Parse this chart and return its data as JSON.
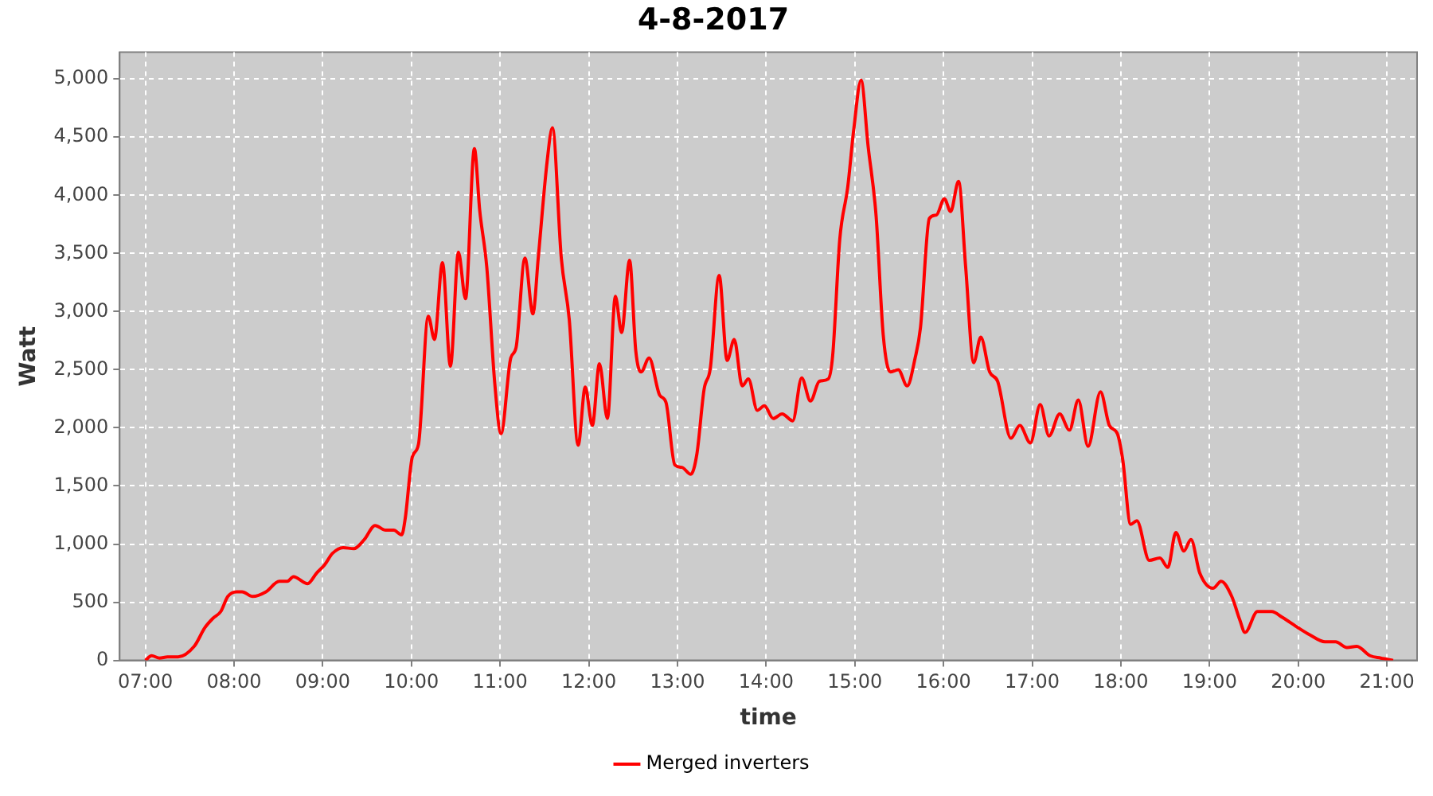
{
  "chart_data": {
    "type": "line",
    "title": "4-8-2017",
    "xlabel": "time",
    "ylabel": "Watt",
    "x": [
      7.0,
      7.07,
      7.16,
      7.25,
      7.37,
      7.55,
      7.67,
      7.76,
      7.85,
      7.93,
      8.03,
      8.09,
      8.21,
      8.36,
      8.51,
      8.6,
      8.67,
      8.83,
      8.93,
      9.02,
      9.11,
      9.23,
      9.35,
      9.47,
      9.59,
      9.71,
      9.8,
      9.89,
      9.93,
      10.01,
      10.08,
      10.19,
      10.26,
      10.35,
      10.44,
      10.53,
      10.61,
      10.71,
      10.77,
      10.85,
      10.94,
      11.01,
      11.12,
      11.18,
      11.28,
      11.37,
      11.43,
      11.53,
      11.59,
      11.69,
      11.78,
      11.88,
      11.96,
      12.04,
      12.12,
      12.21,
      12.3,
      12.37,
      12.46,
      12.53,
      12.59,
      12.68,
      12.8,
      12.87,
      12.97,
      13.05,
      13.15,
      13.22,
      13.3,
      13.37,
      13.47,
      13.56,
      13.64,
      13.73,
      13.8,
      13.9,
      13.98,
      14.08,
      14.18,
      14.3,
      14.4,
      14.5,
      14.6,
      14.7,
      14.75,
      14.83,
      14.92,
      14.99,
      15.07,
      15.15,
      15.24,
      15.32,
      15.4,
      15.49,
      15.59,
      15.68,
      15.74,
      15.84,
      15.92,
      16.01,
      16.08,
      16.17,
      16.25,
      16.34,
      16.42,
      16.52,
      16.61,
      16.76,
      16.86,
      16.98,
      17.09,
      17.19,
      17.31,
      17.42,
      17.52,
      17.63,
      17.77,
      17.87,
      17.96,
      18.02,
      18.11,
      18.18,
      18.32,
      18.44,
      18.53,
      18.62,
      18.71,
      18.79,
      18.89,
      19.04,
      19.13,
      19.25,
      19.34,
      19.4,
      19.54,
      19.7,
      19.82,
      20.0,
      20.13,
      20.3,
      20.42,
      20.55,
      20.66,
      20.81,
      20.93,
      21.07
    ],
    "series": [
      {
        "name": "Merged inverters",
        "color": "#ff0000",
        "values": [
          0,
          40,
          20,
          30,
          30,
          120,
          280,
          360,
          420,
          550,
          590,
          590,
          550,
          590,
          680,
          680,
          720,
          660,
          750,
          820,
          920,
          970,
          960,
          1040,
          1160,
          1120,
          1120,
          1080,
          1220,
          1750,
          1860,
          2960,
          2760,
          3420,
          2530,
          3510,
          3110,
          4400,
          3870,
          3380,
          2380,
          1950,
          2600,
          2690,
          3460,
          2980,
          3460,
          4290,
          4580,
          3460,
          2930,
          1850,
          2350,
          2020,
          2550,
          2080,
          3130,
          2820,
          3440,
          2660,
          2480,
          2600,
          2280,
          2220,
          1680,
          1660,
          1600,
          1780,
          2330,
          2510,
          3310,
          2580,
          2760,
          2360,
          2420,
          2150,
          2190,
          2080,
          2120,
          2060,
          2430,
          2230,
          2400,
          2420,
          2620,
          3620,
          4070,
          4580,
          4990,
          4420,
          3820,
          2800,
          2480,
          2500,
          2360,
          2600,
          2860,
          3800,
          3830,
          3970,
          3860,
          4120,
          3380,
          2560,
          2780,
          2480,
          2400,
          1910,
          2020,
          1870,
          2200,
          1930,
          2120,
          1980,
          2240,
          1840,
          2310,
          2020,
          1950,
          1730,
          1170,
          1200,
          860,
          880,
          800,
          1100,
          940,
          1040,
          750,
          620,
          680,
          550,
          350,
          240,
          420,
          420,
          370,
          280,
          220,
          160,
          160,
          110,
          120,
          40,
          20,
          0
        ]
      }
    ],
    "xlim": [
      6.71,
      21.34
    ],
    "xticks": [
      {
        "value": 7,
        "label": "07:00"
      },
      {
        "value": 8,
        "label": "08:00"
      },
      {
        "value": 9,
        "label": "09:00"
      },
      {
        "value": 10,
        "label": "10:00"
      },
      {
        "value": 11,
        "label": "11:00"
      },
      {
        "value": 12,
        "label": "12:00"
      },
      {
        "value": 13,
        "label": "13:00"
      },
      {
        "value": 14,
        "label": "14:00"
      },
      {
        "value": 15,
        "label": "15:00"
      },
      {
        "value": 16,
        "label": "16:00"
      },
      {
        "value": 17,
        "label": "17:00"
      },
      {
        "value": 18,
        "label": "18:00"
      },
      {
        "value": 19,
        "label": "19:00"
      },
      {
        "value": 20,
        "label": "20:00"
      },
      {
        "value": 21,
        "label": "21:00"
      }
    ],
    "ylim": [
      0,
      5230
    ],
    "yticks": [
      0,
      500,
      {
        "value": 1000,
        "label": "1,000"
      },
      {
        "value": 1500,
        "label": "1,500"
      },
      {
        "value": 2000,
        "label": "2,000"
      },
      {
        "value": 2500,
        "label": "2,500"
      },
      {
        "value": 3000,
        "label": "3,000"
      },
      {
        "value": 3500,
        "label": "3,500"
      },
      {
        "value": 4000,
        "label": "4,000"
      },
      {
        "value": 4500,
        "label": "4,500"
      },
      {
        "value": 5000,
        "label": "5,000"
      }
    ],
    "grid": true,
    "legend": "bottom"
  }
}
